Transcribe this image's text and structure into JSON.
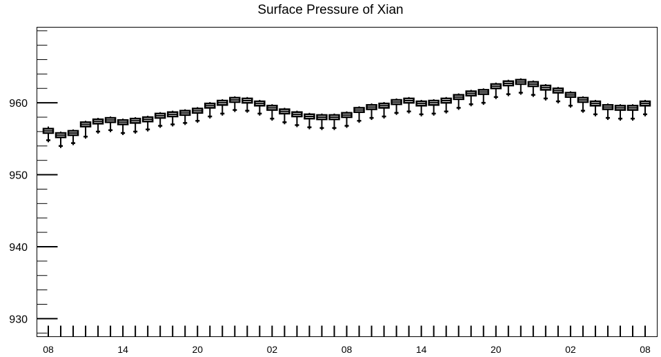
{
  "chart_data": {
    "type": "boxplot",
    "title": "Surface Pressure of Xian",
    "xlabel": "",
    "ylabel": "",
    "ylim": [
      927.5,
      970.5
    ],
    "yticks": [
      930,
      940,
      950,
      960
    ],
    "xtick_labels": [
      "08",
      "14",
      "20",
      "02",
      "08",
      "14",
      "20",
      "02",
      "08"
    ],
    "x_hours": [
      0,
      3,
      6,
      9,
      12,
      15,
      18,
      21,
      24,
      27,
      30,
      33,
      36,
      39,
      42,
      45,
      48,
      51,
      54,
      57,
      60,
      63,
      66,
      69,
      72,
      75,
      78,
      81,
      84,
      87,
      90,
      93,
      96,
      99,
      102,
      105,
      108,
      111,
      114,
      117,
      120,
      123,
      126,
      129,
      132,
      135,
      138,
      141,
      144
    ],
    "median": [
      956.1,
      955.5,
      955.8,
      957.0,
      957.4,
      957.6,
      957.3,
      957.5,
      957.7,
      958.2,
      958.4,
      958.6,
      958.9,
      959.6,
      960.0,
      960.4,
      960.3,
      959.9,
      959.3,
      958.8,
      958.4,
      958.1,
      958.0,
      958.0,
      958.3,
      959.0,
      959.4,
      959.6,
      960.1,
      960.3,
      959.9,
      960.0,
      960.3,
      960.8,
      961.3,
      961.5,
      962.3,
      962.7,
      962.9,
      962.6,
      962.1,
      961.7,
      961.1,
      960.4,
      959.9,
      959.4,
      959.3,
      959.3,
      959.9
    ],
    "q1": [
      955.8,
      955.2,
      955.5,
      956.7,
      957.1,
      957.3,
      957.0,
      957.2,
      957.4,
      957.9,
      958.1,
      958.3,
      958.6,
      959.3,
      959.7,
      960.1,
      960.0,
      959.6,
      959.0,
      958.5,
      958.1,
      957.8,
      957.7,
      957.7,
      958.0,
      958.7,
      959.1,
      959.3,
      959.8,
      960.0,
      959.6,
      959.7,
      960.0,
      960.5,
      961.0,
      961.2,
      962.0,
      962.4,
      962.6,
      962.3,
      961.8,
      961.4,
      960.8,
      960.1,
      959.6,
      959.1,
      959.0,
      959.0,
      959.6
    ],
    "q3": [
      956.4,
      955.8,
      956.1,
      957.3,
      957.7,
      957.9,
      957.6,
      957.8,
      958.0,
      958.5,
      958.7,
      958.9,
      959.2,
      959.9,
      960.3,
      960.7,
      960.6,
      960.2,
      959.6,
      959.1,
      958.7,
      958.4,
      958.3,
      958.3,
      958.6,
      959.3,
      959.7,
      959.9,
      960.4,
      960.6,
      960.2,
      960.3,
      960.6,
      961.1,
      961.6,
      961.8,
      962.6,
      963.0,
      963.2,
      962.9,
      962.4,
      962.0,
      961.4,
      960.7,
      960.2,
      959.7,
      959.6,
      959.6,
      960.2
    ],
    "whisker_low": [
      954.8,
      954.0,
      954.4,
      955.3,
      956.0,
      956.2,
      955.8,
      956.0,
      956.3,
      956.8,
      957.0,
      957.2,
      957.5,
      958.1,
      958.5,
      959.0,
      958.9,
      958.5,
      957.8,
      957.3,
      956.9,
      956.6,
      956.5,
      956.5,
      956.8,
      957.5,
      957.9,
      958.1,
      958.6,
      958.8,
      958.4,
      958.5,
      958.8,
      959.3,
      959.8,
      960.0,
      960.8,
      961.2,
      961.4,
      961.1,
      960.6,
      960.2,
      959.6,
      958.9,
      958.4,
      957.9,
      957.8,
      957.8,
      958.4
    ],
    "whisker_high": [
      956.7,
      956.0,
      956.3,
      957.5,
      957.9,
      958.1,
      957.8,
      958.0,
      958.2,
      958.7,
      958.9,
      959.1,
      959.4,
      960.1,
      960.5,
      960.9,
      960.8,
      960.4,
      959.8,
      959.3,
      958.9,
      958.6,
      958.5,
      958.5,
      958.8,
      959.5,
      959.9,
      960.1,
      960.6,
      960.8,
      960.4,
      960.5,
      960.8,
      961.3,
      961.8,
      962.0,
      962.8,
      963.2,
      963.4,
      963.1,
      962.6,
      962.2,
      961.6,
      960.9,
      960.4,
      959.9,
      959.8,
      959.8,
      960.4
    ],
    "grid": false,
    "legend": "none",
    "colors": {
      "box": "#000000",
      "background": "#ffffff"
    }
  }
}
